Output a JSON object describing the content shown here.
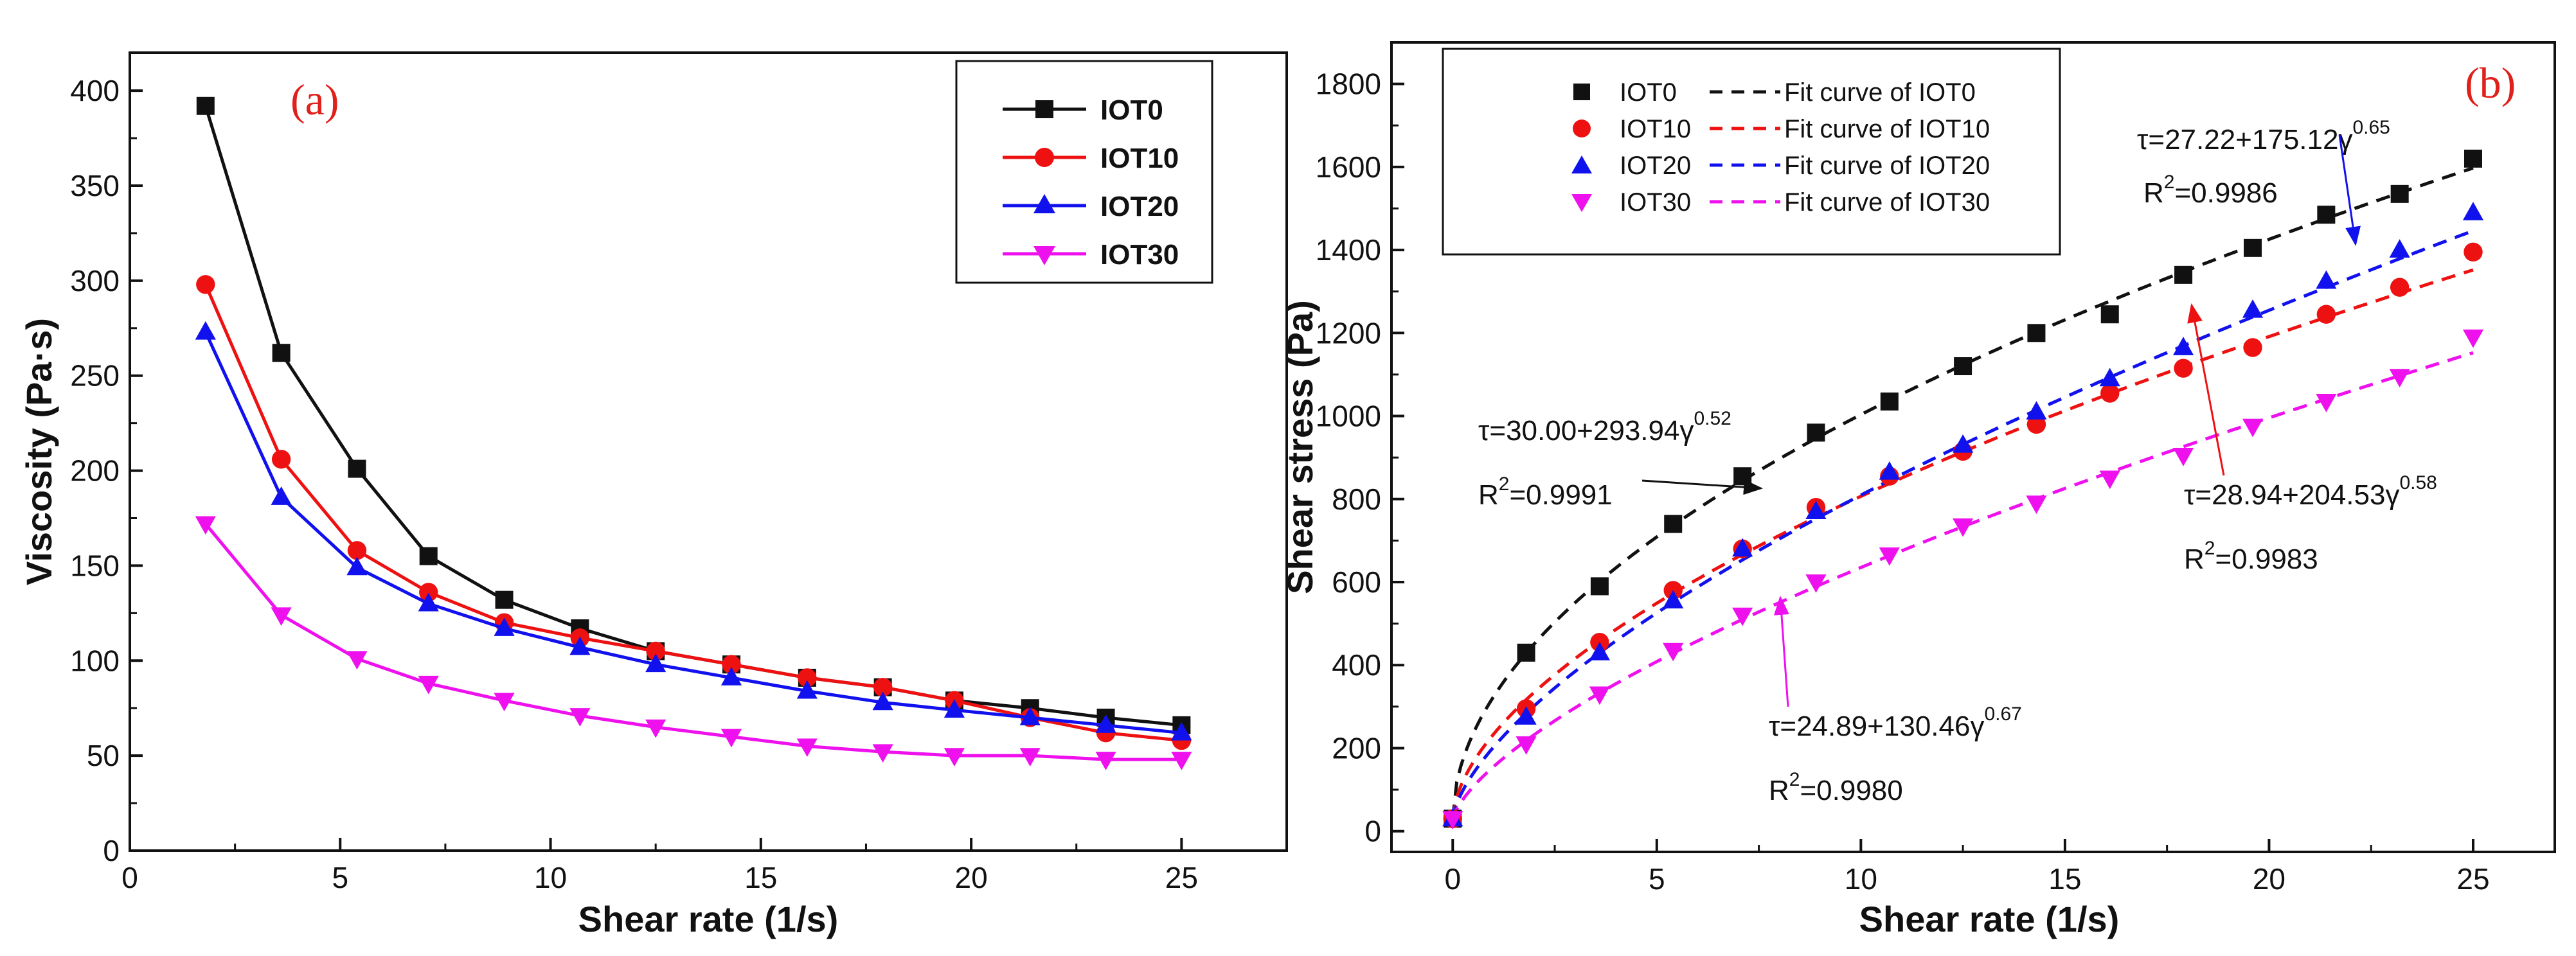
{
  "chart_data": [
    {
      "id": "a",
      "type": "line",
      "panel_label": "(a)",
      "xlabel": "Shear rate (1/s)",
      "ylabel": "Viscosity (Pa·s)",
      "xlim": [
        0,
        27.5
      ],
      "ylim": [
        0,
        420
      ],
      "xticks": [
        "0",
        "5",
        "10",
        "15",
        "20",
        "25"
      ],
      "yticks": [
        "0",
        "50",
        "100",
        "150",
        "200",
        "250",
        "300",
        "350",
        "400"
      ],
      "legend_position": "top-right",
      "x": [
        1.8,
        3.6,
        5.4,
        7.1,
        8.9,
        10.7,
        12.5,
        14.3,
        16.1,
        17.9,
        19.6,
        21.4,
        23.2,
        25.0
      ],
      "series": [
        {
          "name": "IOT0",
          "color": "#111111",
          "marker": "square",
          "values": [
            392,
            262,
            201,
            155,
            132,
            117,
            105,
            98,
            91,
            86,
            79,
            75,
            70,
            66
          ]
        },
        {
          "name": "IOT10",
          "color": "#ee1111",
          "marker": "circle",
          "values": [
            298,
            206,
            158,
            136,
            120,
            112,
            105,
            98,
            91,
            86,
            79,
            70,
            62,
            58
          ]
        },
        {
          "name": "IOT20",
          "color": "#1111ee",
          "marker": "triangle-up",
          "values": [
            273,
            186,
            149,
            130,
            117,
            107,
            98,
            91,
            84,
            78,
            74,
            70,
            66,
            62
          ]
        },
        {
          "name": "IOT30",
          "color": "#ee11ee",
          "marker": "triangle-down",
          "values": [
            172,
            124,
            101,
            88,
            79,
            71,
            65,
            60,
            55,
            52,
            50,
            50,
            48,
            48
          ]
        }
      ]
    },
    {
      "id": "b",
      "type": "scatter",
      "panel_label": "(b)",
      "xlabel": "Shear rate (1/s)",
      "ylabel": "Shear stress (Pa)",
      "xlim": [
        -1.5,
        27
      ],
      "ylim": [
        -50,
        1900
      ],
      "xticks": [
        "0",
        "5",
        "10",
        "15",
        "20",
        "25"
      ],
      "yticks": [
        "0",
        "200",
        "400",
        "600",
        "800",
        "1000",
        "1200",
        "1400",
        "1600",
        "1800"
      ],
      "legend_position": "top-left",
      "x": [
        0,
        1.8,
        3.6,
        5.4,
        7.1,
        8.9,
        10.7,
        12.5,
        14.3,
        16.1,
        17.9,
        19.6,
        21.4,
        23.2,
        25.0
      ],
      "series": [
        {
          "name": "IOT0",
          "fit_name": "Fit curve of IOT0",
          "color": "#111111",
          "marker": "square",
          "values": [
            30,
            430,
            590,
            740,
            855,
            960,
            1035,
            1120,
            1200,
            1245,
            1340,
            1405,
            1485,
            1535,
            1620
          ],
          "fit": {
            "a": 30.0,
            "b": 293.94,
            "n": 0.52
          }
        },
        {
          "name": "IOT10",
          "fit_name": "Fit curve of IOT10",
          "color": "#ee1111",
          "marker": "circle",
          "values": [
            30,
            295,
            455,
            580,
            680,
            780,
            855,
            915,
            980,
            1055,
            1115,
            1165,
            1245,
            1310,
            1395
          ],
          "fit": {
            "a": 28.94,
            "b": 204.53,
            "n": 0.58
          }
        },
        {
          "name": "IOT20",
          "fit_name": "Fit curve of IOT20",
          "color": "#1111ee",
          "marker": "triangle-up",
          "values": [
            30,
            275,
            430,
            555,
            680,
            770,
            865,
            930,
            1010,
            1090,
            1165,
            1255,
            1325,
            1400,
            1490
          ],
          "fit": {
            "a": 27.22,
            "b": 175.12,
            "n": 0.65
          }
        },
        {
          "name": "IOT30",
          "fit_name": "Fit curve of IOT30",
          "color": "#ee11ee",
          "marker": "triangle-down",
          "values": [
            30,
            210,
            330,
            435,
            520,
            600,
            665,
            735,
            790,
            850,
            905,
            975,
            1035,
            1095,
            1190
          ],
          "fit": {
            "a": 24.89,
            "b": 130.46,
            "n": 0.67
          }
        }
      ],
      "annotations": [
        {
          "formula": "τ=30.00+293.94γ",
          "exponent": "0.52",
          "r2": "=0.9991",
          "series": "IOT0"
        },
        {
          "formula": "τ=27.22+175.12γ",
          "exponent": "0.65",
          "r2": "=0.9986",
          "series": "IOT20"
        },
        {
          "formula": "τ=28.94+204.53γ",
          "exponent": "0.58",
          "r2": "=0.9983",
          "series": "IOT10"
        },
        {
          "formula": "τ=24.89+130.46γ",
          "exponent": "0.67",
          "r2": "=0.9980",
          "series": "IOT30"
        }
      ]
    }
  ]
}
